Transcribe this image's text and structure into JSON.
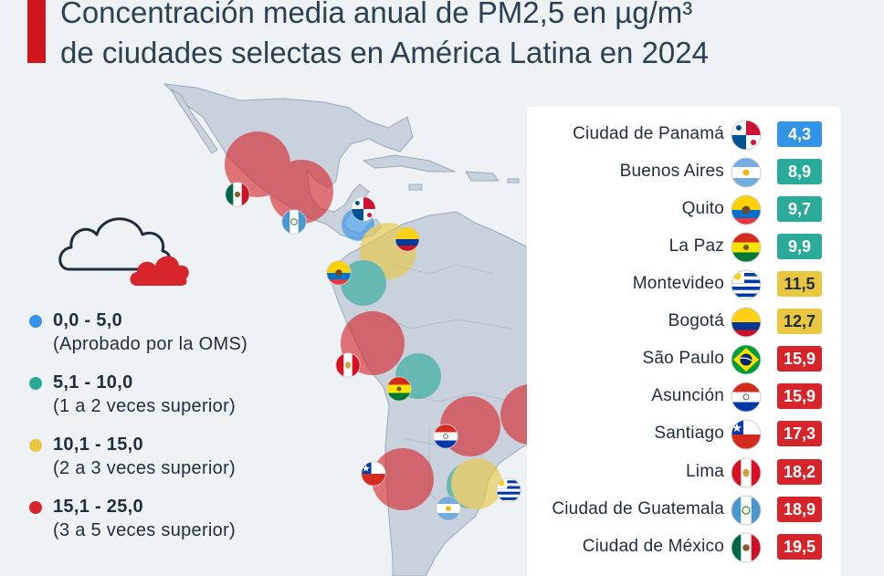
{
  "title": {
    "line1": "Concentración media anual de PM2,5 en µg/m³",
    "line2": "de ciudades selectas en América Latina en 2024"
  },
  "colors": {
    "accent": "#d1151c",
    "blue": "#3393e6",
    "teal": "#2aab99",
    "yellow": "#e9c740",
    "red": "#d6242a"
  },
  "icon": "cloud-icon",
  "legend": [
    {
      "range": "0,0 - 5,0",
      "desc": "(Aprobado por la OMS)",
      "color": "#3393e6"
    },
    {
      "range": "5,1 - 10,0",
      "desc": "(1 a 2 veces superior)",
      "color": "#2aab99"
    },
    {
      "range": "10,1 - 15,0",
      "desc": "(2 a 3 veces superior)",
      "color": "#e9c740"
    },
    {
      "range": "15,1 - 25,0",
      "desc": "(3 a 5 veces superior)",
      "color": "#d6242a"
    }
  ],
  "cities": [
    {
      "name": "Ciudad de Panamá",
      "value": "4,3",
      "flag": "panama-flag-icon",
      "band": "blue"
    },
    {
      "name": "Buenos Aires",
      "value": "8,9",
      "flag": "argentina-flag-icon",
      "band": "teal"
    },
    {
      "name": "Quito",
      "value": "9,7",
      "flag": "ecuador-flag-icon",
      "band": "teal"
    },
    {
      "name": "La Paz",
      "value": "9,9",
      "flag": "bolivia-flag-icon",
      "band": "teal"
    },
    {
      "name": "Montevideo",
      "value": "11,5",
      "flag": "uruguay-flag-icon",
      "band": "yellow"
    },
    {
      "name": "Bogotá",
      "value": "12,7",
      "flag": "colombia-flag-icon",
      "band": "yellow"
    },
    {
      "name": "São Paulo",
      "value": "15,9",
      "flag": "brazil-flag-icon",
      "band": "red"
    },
    {
      "name": "Asunción",
      "value": "15,9",
      "flag": "paraguay-flag-icon",
      "band": "red"
    },
    {
      "name": "Santiago",
      "value": "17,3",
      "flag": "chile-flag-icon",
      "band": "red"
    },
    {
      "name": "Lima",
      "value": "18,2",
      "flag": "peru-flag-icon",
      "band": "red"
    },
    {
      "name": "Ciudad de Guatemala",
      "value": "18,9",
      "flag": "guatemala-flag-icon",
      "band": "red"
    },
    {
      "name": "Ciudad de México",
      "value": "19,5",
      "flag": "mexico-flag-icon",
      "band": "red"
    }
  ]
}
